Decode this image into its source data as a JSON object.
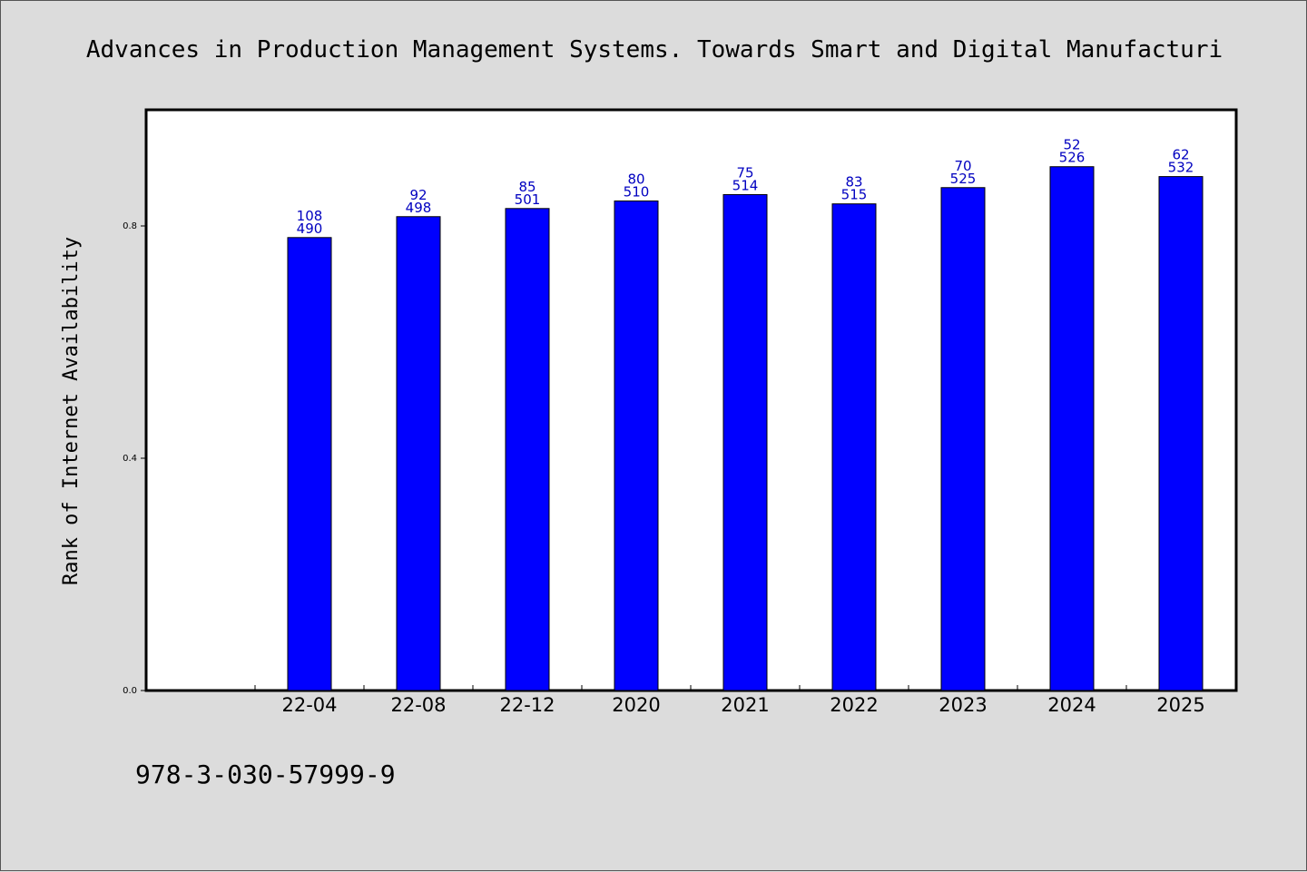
{
  "chart_data": {
    "type": "bar",
    "title": "Advances in Production Management Systems. Towards Smart and Digital Manufacturi",
    "ylabel": "Rank of Internet Availability",
    "xlabel": "",
    "ylim": [
      0,
      1.0
    ],
    "yticks": [
      "0.0",
      "0.4",
      "0.8"
    ],
    "ytick_values": [
      0.0,
      0.4,
      0.8
    ],
    "categories": [
      "22-04",
      "22-08",
      "22-12",
      "2020",
      "2021",
      "2022",
      "2023",
      "2024",
      "2025"
    ],
    "values": [
      0.78,
      0.816,
      0.83,
      0.843,
      0.854,
      0.838,
      0.866,
      0.902,
      0.885
    ],
    "label_top": [
      "108",
      "92",
      "85",
      "80",
      "75",
      "83",
      "70",
      "52",
      "62"
    ],
    "label_bottom": [
      "490",
      "498",
      "501",
      "510",
      "514",
      "515",
      "525",
      "526",
      "532"
    ],
    "bar_color": "#0000ff",
    "label_color": "#0000c0",
    "grid": false,
    "legend": "none"
  },
  "footer": {
    "isbn": "978-3-030-57999-9"
  }
}
